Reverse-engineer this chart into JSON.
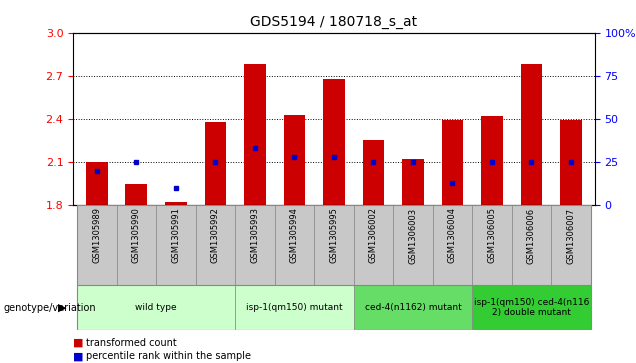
{
  "title": "GDS5194 / 180718_s_at",
  "samples": [
    "GSM1305989",
    "GSM1305990",
    "GSM1305991",
    "GSM1305992",
    "GSM1305993",
    "GSM1305994",
    "GSM1305995",
    "GSM1306002",
    "GSM1306003",
    "GSM1306004",
    "GSM1306005",
    "GSM1306006",
    "GSM1306007"
  ],
  "transformed_count": [
    2.1,
    1.95,
    1.82,
    2.38,
    2.78,
    2.43,
    2.68,
    2.25,
    2.12,
    2.39,
    2.42,
    2.78,
    2.39
  ],
  "percentile_rank": [
    20,
    25,
    10,
    25,
    33,
    28,
    28,
    25,
    25,
    13,
    25,
    25,
    25
  ],
  "ymin": 1.8,
  "ymax": 3.0,
  "yticks_left": [
    1.8,
    2.1,
    2.4,
    2.7,
    3.0
  ],
  "yticks_right": [
    0,
    25,
    50,
    75,
    100
  ],
  "bar_color": "#cc0000",
  "dot_color": "#0000cc",
  "group_labels": [
    "wild type",
    "isp-1(qm150) mutant",
    "ced-4(n1162) mutant",
    "isp-1(qm150) ced-4(n116\n2) double mutant"
  ],
  "group_colors": [
    "#ccffcc",
    "#ccffcc",
    "#66dd66",
    "#33cc33"
  ],
  "group_ranges": [
    [
      0,
      3
    ],
    [
      4,
      6
    ],
    [
      7,
      9
    ],
    [
      10,
      12
    ]
  ],
  "xlabel_area": "genotype/variation",
  "legend_red": "transformed count",
  "legend_blue": "percentile rank within the sample",
  "tick_label_gray": "#d0d0d0",
  "sample_box_color": "#c8c8c8"
}
